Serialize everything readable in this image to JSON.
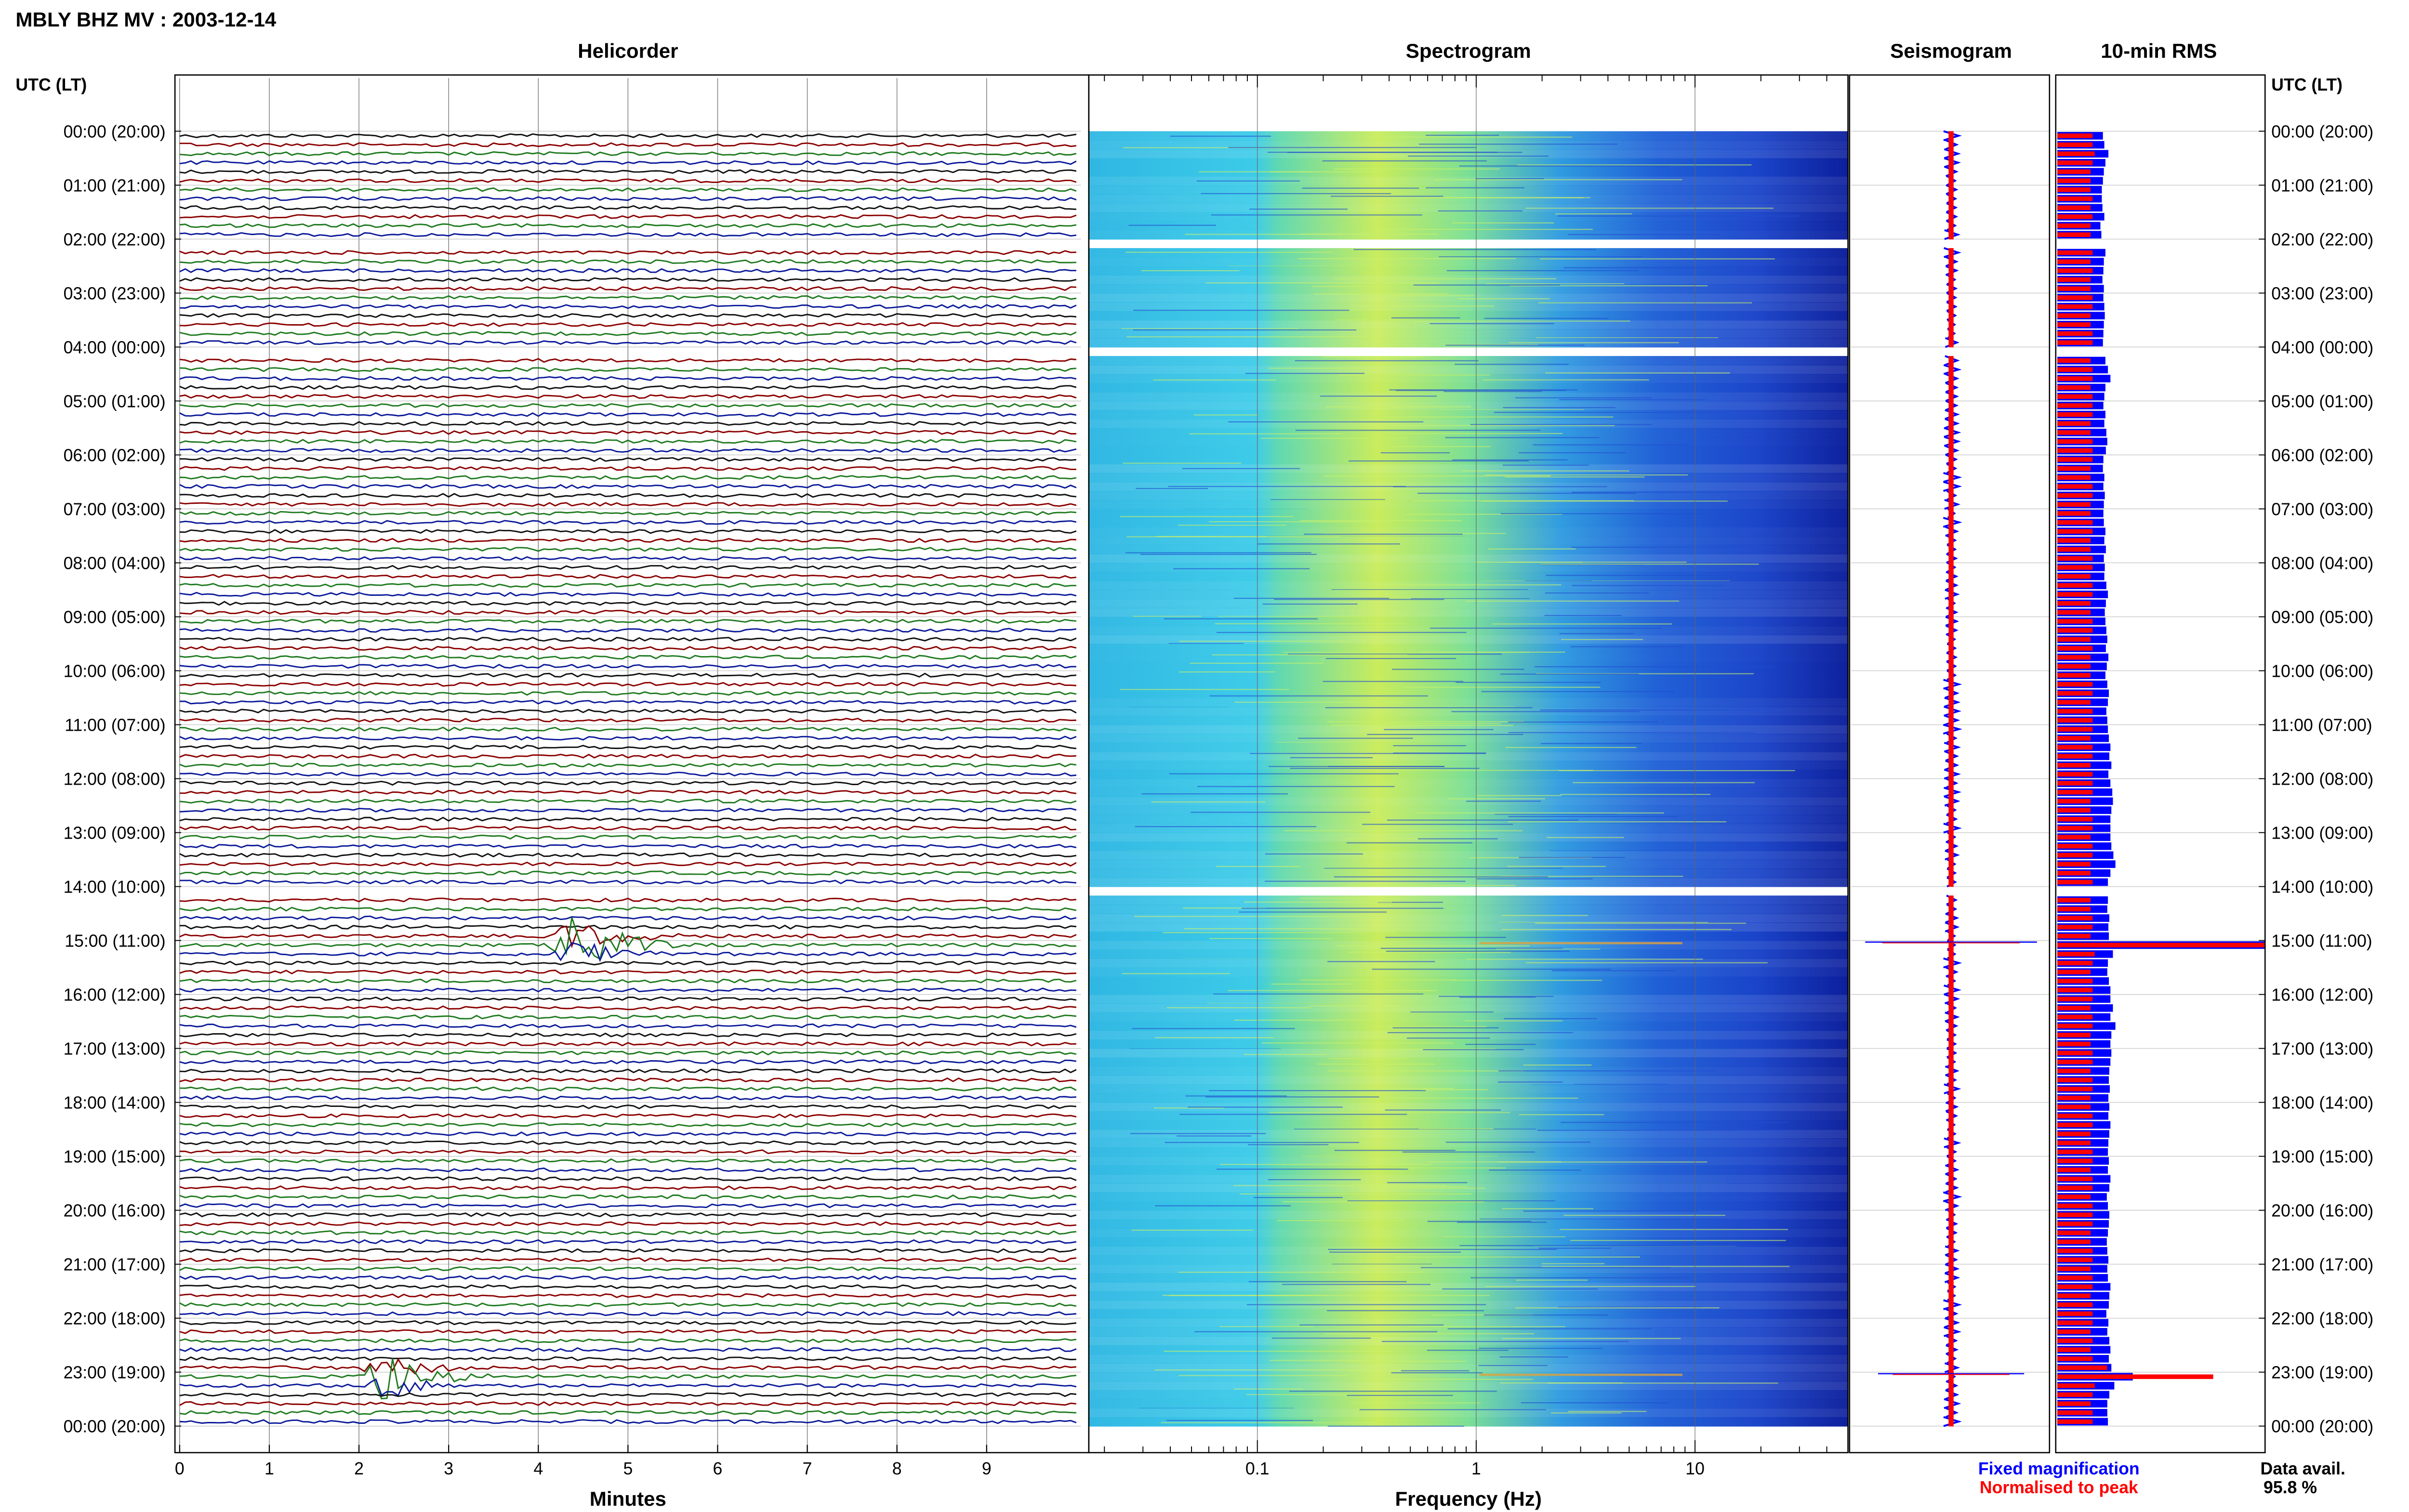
{
  "header": {
    "title": "MBLY BHZ MV : 2003-12-14"
  },
  "panels": {
    "helicorder": "Helicorder",
    "spectrogram": "Spectrogram",
    "seismogram": "Seismogram",
    "rms": "10-min RMS"
  },
  "time_axis": {
    "label": "UTC (LT)",
    "ticks": [
      "00:00 (20:00)",
      "01:00 (21:00)",
      "02:00 (22:00)",
      "03:00 (23:00)",
      "04:00 (00:00)",
      "05:00 (01:00)",
      "06:00 (02:00)",
      "07:00 (03:00)",
      "08:00 (04:00)",
      "09:00 (05:00)",
      "10:00 (06:00)",
      "11:00 (07:00)",
      "12:00 (08:00)",
      "13:00 (09:00)",
      "14:00 (10:00)",
      "15:00 (11:00)",
      "16:00 (12:00)",
      "17:00 (13:00)",
      "18:00 (14:00)",
      "19:00 (15:00)",
      "20:00 (16:00)",
      "21:00 (17:00)",
      "22:00 (18:00)",
      "23:00 (19:00)",
      "00:00 (20:00)"
    ]
  },
  "helicorder_axis": {
    "xlabel": "Minutes",
    "ticks": [
      "0",
      "1",
      "2",
      "3",
      "4",
      "5",
      "6",
      "7",
      "8",
      "9"
    ]
  },
  "spectrogram_axis": {
    "xlabel": "Frequency (Hz)",
    "ticks": [
      "0.1",
      "1",
      "10"
    ]
  },
  "legend": {
    "fixed": "Fixed magnification",
    "normalised": "Normalised to peak"
  },
  "availability": {
    "label": "Data avail.",
    "value": "95.8 %"
  },
  "colors": {
    "trace_cycle": [
      "#111111",
      "#8b0000",
      "#1f7a1f",
      "#0b1a99"
    ],
    "fixed_magnification": "#0000ff",
    "normalised_to_peak": "#ff0000",
    "spectrogram_low": "#1a3cc7",
    "spectrogram_mid": "#38c6e6",
    "spectrogram_high": "#dcee4f"
  },
  "chart_data": {
    "type": "heatmap",
    "station": "MBLY BHZ MV",
    "date": "2003-12-14",
    "rows_per_hour": 6,
    "gaps_utc": [
      [
        "02:00",
        "02:10"
      ],
      [
        "04:00",
        "04:10"
      ],
      [
        "14:00",
        "14:10"
      ]
    ],
    "events": [
      {
        "time_utc": "15:00",
        "minute": 4.4,
        "relative_amplitude": 1.0
      },
      {
        "time_utc": "23:00",
        "minute": 2.3,
        "relative_amplitude": 0.85
      }
    ],
    "rms_10min_fixed": [
      0.35,
      0.38,
      0.46,
      0.4,
      0.37,
      0.35,
      0.33,
      0.33,
      0.34,
      0.38,
      0.3,
      0.32,
      0.38,
      0.4,
      0.37,
      0.36,
      0.34,
      0.37,
      0.36,
      0.38,
      0.39,
      0.37,
      0.36,
      0.35,
      0.38,
      0.4,
      0.45,
      0.5,
      0.4,
      0.38,
      0.36,
      0.4,
      0.38,
      0.42,
      0.44,
      0.41,
      0.36,
      0.35,
      0.38,
      0.36,
      0.39,
      0.37,
      0.36,
      0.37,
      0.4,
      0.38,
      0.41,
      0.37,
      0.39,
      0.38,
      0.42,
      0.45,
      0.41,
      0.39,
      0.4,
      0.42,
      0.44,
      0.41,
      0.46,
      0.43,
      0.4,
      0.44,
      0.47,
      0.45,
      0.42,
      0.44,
      0.45,
      0.47,
      0.5,
      0.48,
      0.52,
      0.46,
      0.5,
      0.54,
      0.55,
      0.52,
      0.5,
      0.5,
      0.5,
      0.52,
      0.56,
      0.6,
      0.5,
      0.45,
      0.42,
      0.45,
      0.44,
      0.48,
      0.46,
      0.47,
      1.0,
      0.55,
      0.45,
      0.44,
      0.47,
      0.5,
      0.5,
      0.55,
      0.5,
      0.6,
      0.52,
      0.5,
      0.52,
      0.5,
      0.48,
      0.47,
      0.49,
      0.46,
      0.48,
      0.46,
      0.5,
      0.48,
      0.46,
      0.45,
      0.47,
      0.45,
      0.5,
      0.48,
      0.43,
      0.45,
      0.48,
      0.47,
      0.45,
      0.43,
      0.44,
      0.46,
      0.44,
      0.45,
      0.5,
      0.48,
      0.47,
      0.42,
      0.46,
      0.44,
      0.48,
      0.5,
      0.47,
      0.52,
      0.95,
      0.58,
      0.48,
      0.44,
      0.44,
      0.45
    ],
    "rms_10min_normalised": [
      0.17,
      0.17,
      0.18,
      0.17,
      0.16,
      0.16,
      0.16,
      0.17,
      0.16,
      0.17,
      0.16,
      0.16,
      0.17,
      0.17,
      0.16,
      0.17,
      0.16,
      0.16,
      0.17,
      0.17,
      0.16,
      0.16,
      0.17,
      0.17,
      0.17,
      0.16,
      0.17,
      0.17,
      0.16,
      0.17,
      0.17,
      0.17,
      0.16,
      0.16,
      0.17,
      0.17,
      0.17,
      0.16,
      0.16,
      0.17,
      0.17,
      0.16,
      0.16,
      0.17,
      0.17,
      0.16,
      0.16,
      0.17,
      0.17,
      0.16,
      0.17,
      0.17,
      0.16,
      0.16,
      0.17,
      0.17,
      0.16,
      0.17,
      0.16,
      0.16,
      0.16,
      0.17,
      0.17,
      0.16,
      0.17,
      0.17,
      0.17,
      0.16,
      0.17,
      0.17,
      0.16,
      0.17,
      0.17,
      0.17,
      0.16,
      0.16,
      0.17,
      0.17,
      0.16,
      0.17,
      0.17,
      0.16,
      0.16,
      0.17,
      0.17,
      0.16,
      0.16,
      0.17,
      0.17,
      0.16,
      1.0,
      0.18,
      0.17,
      0.16,
      0.17,
      0.17,
      0.17,
      0.16,
      0.17,
      0.17,
      0.16,
      0.16,
      0.17,
      0.17,
      0.16,
      0.17,
      0.17,
      0.16,
      0.16,
      0.17,
      0.17,
      0.16,
      0.16,
      0.17,
      0.17,
      0.16,
      0.17,
      0.17,
      0.16,
      0.17,
      0.17,
      0.17,
      0.16,
      0.16,
      0.17,
      0.17,
      0.16,
      0.17,
      0.17,
      0.16,
      0.17,
      0.17,
      0.17,
      0.16,
      0.17,
      0.16,
      0.17,
      0.24,
      0.75,
      0.18,
      0.17,
      0.16,
      0.17,
      0.17
    ]
  }
}
